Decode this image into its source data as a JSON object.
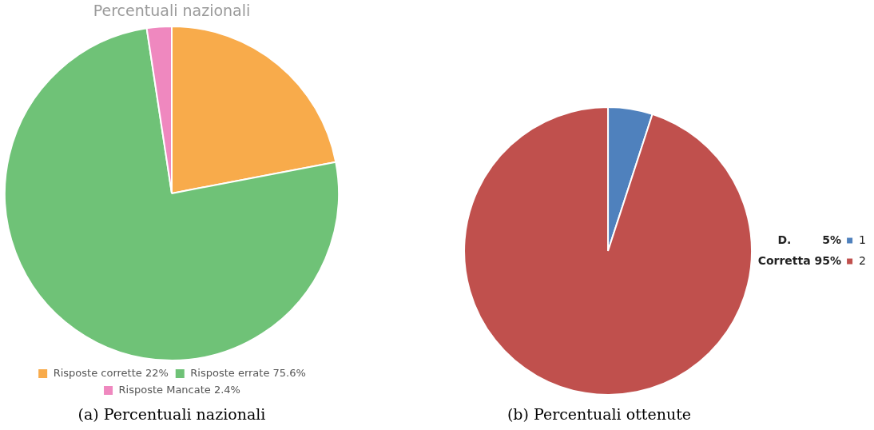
{
  "chart_data": [
    {
      "type": "pie",
      "title": "Percentuali nazionali",
      "categories": [
        "Risposte corrette 22%",
        "Risposte errate 75.6%",
        "Risposte Mancate 2.4%"
      ],
      "values": [
        22,
        75.6,
        2.4
      ],
      "colors": [
        "#f8ab4b",
        "#6fc277",
        "#ef88bf"
      ],
      "legend": "bottom",
      "annotations": [
        "(a) Percentuali nazionali"
      ]
    },
    {
      "type": "pie",
      "categories": [
        "1",
        "2"
      ],
      "values": [
        5,
        95
      ],
      "colors": [
        "#4f81bd",
        "#c0504d"
      ],
      "legend": "right",
      "annotations": [
        "D.        5%",
        "Corretta 95%",
        "(b) Percentuali ottenute"
      ]
    }
  ]
}
